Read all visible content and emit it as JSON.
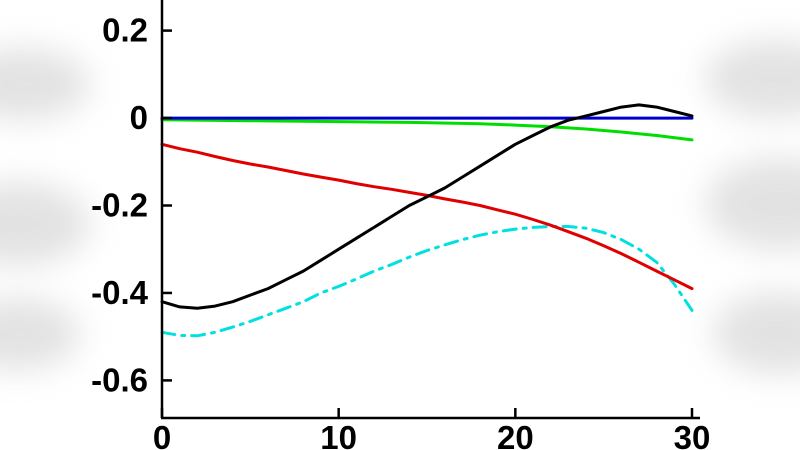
{
  "chart_data": {
    "type": "line",
    "title": "",
    "xlabel": "",
    "ylabel": "",
    "xlim": [
      0,
      30
    ],
    "ylim": [
      -0.686,
      0.27
    ],
    "grid": false,
    "legend": "none",
    "background_color": "#ffffff",
    "axis_color": "#000000",
    "x_ticks": [
      0,
      10,
      20,
      30
    ],
    "x_tick_labels": [
      "0",
      "10",
      "20",
      "30"
    ],
    "y_ticks": [
      0.2,
      0,
      -0.2,
      -0.4,
      -0.6
    ],
    "y_tick_labels": [
      "0.2",
      "0",
      "-0.2",
      "-0.4",
      "-0.6"
    ],
    "series": [
      {
        "name": "green-line",
        "color": "#00dd00",
        "style": "solid",
        "width": 3,
        "points": [
          [
            0,
            -0.004
          ],
          [
            5,
            -0.006
          ],
          [
            10,
            -0.008
          ],
          [
            14,
            -0.01
          ],
          [
            18,
            -0.013
          ],
          [
            20,
            -0.016
          ],
          [
            22,
            -0.02
          ],
          [
            24,
            -0.025
          ],
          [
            26,
            -0.032
          ],
          [
            28,
            -0.04
          ],
          [
            30,
            -0.05
          ]
        ]
      },
      {
        "name": "blue-line",
        "color": "#0000cc",
        "style": "solid",
        "width": 3,
        "points": [
          [
            0,
            0.0
          ],
          [
            10,
            0.0
          ],
          [
            20,
            0.0
          ],
          [
            30,
            0.0
          ]
        ]
      },
      {
        "name": "cyan-dashdot-line",
        "color": "#00e0e0",
        "style": "dashdot",
        "width": 3,
        "points": [
          [
            0,
            -0.49
          ],
          [
            1,
            -0.497
          ],
          [
            2,
            -0.498
          ],
          [
            3,
            -0.49
          ],
          [
            4,
            -0.478
          ],
          [
            5,
            -0.465
          ],
          [
            6,
            -0.45
          ],
          [
            7,
            -0.435
          ],
          [
            8,
            -0.42
          ],
          [
            9,
            -0.4
          ],
          [
            10,
            -0.385
          ],
          [
            11,
            -0.368
          ],
          [
            12,
            -0.35
          ],
          [
            13,
            -0.335
          ],
          [
            14,
            -0.318
          ],
          [
            15,
            -0.303
          ],
          [
            16,
            -0.29
          ],
          [
            17,
            -0.278
          ],
          [
            18,
            -0.268
          ],
          [
            19,
            -0.26
          ],
          [
            20,
            -0.254
          ],
          [
            21,
            -0.25
          ],
          [
            22,
            -0.248
          ],
          [
            23,
            -0.248
          ],
          [
            24,
            -0.252
          ],
          [
            25,
            -0.262
          ],
          [
            26,
            -0.278
          ],
          [
            27,
            -0.3
          ],
          [
            28,
            -0.33
          ],
          [
            29,
            -0.38
          ],
          [
            30,
            -0.44
          ]
        ]
      },
      {
        "name": "red-line",
        "color": "#e00000",
        "style": "solid",
        "width": 3,
        "points": [
          [
            0,
            -0.06
          ],
          [
            1,
            -0.07
          ],
          [
            2,
            -0.078
          ],
          [
            3,
            -0.088
          ],
          [
            4,
            -0.097
          ],
          [
            5,
            -0.105
          ],
          [
            6,
            -0.112
          ],
          [
            7,
            -0.12
          ],
          [
            8,
            -0.128
          ],
          [
            9,
            -0.135
          ],
          [
            10,
            -0.142
          ],
          [
            11,
            -0.15
          ],
          [
            12,
            -0.157
          ],
          [
            13,
            -0.163
          ],
          [
            14,
            -0.17
          ],
          [
            15,
            -0.177
          ],
          [
            16,
            -0.185
          ],
          [
            17,
            -0.192
          ],
          [
            18,
            -0.2
          ],
          [
            19,
            -0.21
          ],
          [
            20,
            -0.22
          ],
          [
            21,
            -0.232
          ],
          [
            22,
            -0.245
          ],
          [
            23,
            -0.26
          ],
          [
            24,
            -0.275
          ],
          [
            25,
            -0.292
          ],
          [
            26,
            -0.31
          ],
          [
            27,
            -0.33
          ],
          [
            28,
            -0.35
          ],
          [
            29,
            -0.37
          ],
          [
            30,
            -0.39
          ]
        ]
      },
      {
        "name": "black-line",
        "color": "#000000",
        "style": "solid",
        "width": 3,
        "points": [
          [
            0,
            -0.42
          ],
          [
            1,
            -0.432
          ],
          [
            2,
            -0.435
          ],
          [
            3,
            -0.43
          ],
          [
            4,
            -0.42
          ],
          [
            5,
            -0.405
          ],
          [
            6,
            -0.39
          ],
          [
            7,
            -0.37
          ],
          [
            8,
            -0.35
          ],
          [
            9,
            -0.325
          ],
          [
            10,
            -0.3
          ],
          [
            11,
            -0.275
          ],
          [
            12,
            -0.25
          ],
          [
            13,
            -0.225
          ],
          [
            14,
            -0.2
          ],
          [
            15,
            -0.18
          ],
          [
            16,
            -0.16
          ],
          [
            17,
            -0.135
          ],
          [
            18,
            -0.11
          ],
          [
            19,
            -0.085
          ],
          [
            20,
            -0.06
          ],
          [
            21,
            -0.04
          ],
          [
            22,
            -0.02
          ],
          [
            23,
            -0.005
          ],
          [
            24,
            0.005
          ],
          [
            25,
            0.015
          ],
          [
            26,
            0.025
          ],
          [
            27,
            0.03
          ],
          [
            28,
            0.025
          ],
          [
            29,
            0.015
          ],
          [
            30,
            0.005
          ]
        ]
      }
    ]
  }
}
